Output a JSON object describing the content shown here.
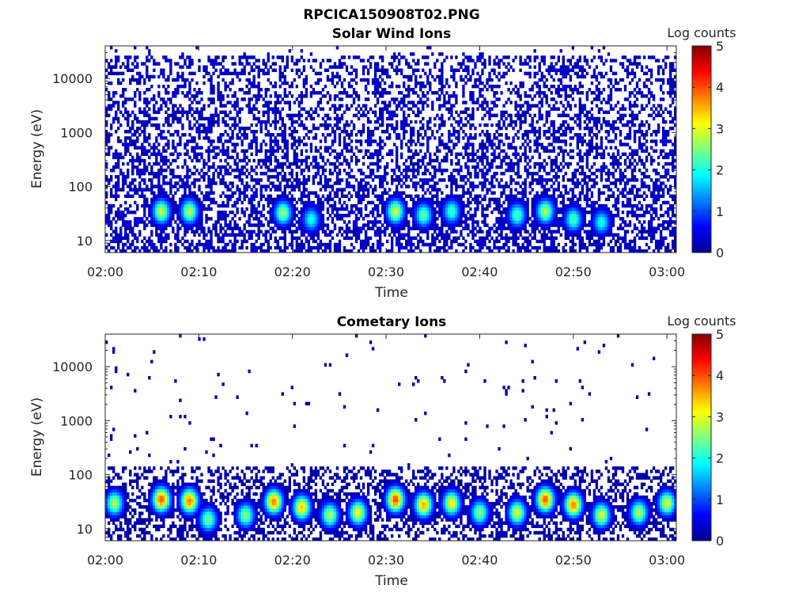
{
  "figure": {
    "title": "RPCICA150908T02.PNG"
  },
  "chart_data": [
    {
      "type": "heatmap",
      "title": "Solar Wind Ions",
      "xlabel": "Time",
      "ylabel": "Energy (eV)",
      "x_ticks": [
        "02:00",
        "02:10",
        "02:20",
        "02:30",
        "02:40",
        "02:50",
        "03:00"
      ],
      "x_range": [
        "02:00",
        "03:01"
      ],
      "y_ticks": [
        10,
        100,
        1000,
        10000
      ],
      "y_range": [
        6,
        40000
      ],
      "y_scale": "log",
      "colorbar": {
        "label": "Log counts",
        "ticks": [
          0,
          1,
          2,
          3,
          4,
          5
        ],
        "range": [
          0,
          5
        ],
        "colormap": "jet"
      },
      "background_noise": {
        "energy_range": [
          6,
          25000
        ],
        "log_counts": 0.3,
        "note_fill_fraction": 0.55
      },
      "features": [
        {
          "time": "02:06",
          "energy": 35,
          "log_counts": 2.9
        },
        {
          "time": "02:09",
          "energy": 35,
          "log_counts": 2.8
        },
        {
          "time": "02:19",
          "energy": 33,
          "log_counts": 2.7
        },
        {
          "time": "02:22",
          "energy": 25,
          "log_counts": 2.0
        },
        {
          "time": "02:31",
          "energy": 35,
          "log_counts": 3.0
        },
        {
          "time": "02:34",
          "energy": 30,
          "log_counts": 2.4
        },
        {
          "time": "02:37",
          "energy": 35,
          "log_counts": 2.2
        },
        {
          "time": "02:44",
          "energy": 30,
          "log_counts": 2.3
        },
        {
          "time": "02:47",
          "energy": 35,
          "log_counts": 2.8
        },
        {
          "time": "02:50",
          "energy": 25,
          "log_counts": 2.3
        },
        {
          "time": "02:53",
          "energy": 22,
          "log_counts": 2.0
        }
      ]
    },
    {
      "type": "heatmap",
      "title": "Cometary Ions",
      "xlabel": "Time",
      "ylabel": "Energy (eV)",
      "x_ticks": [
        "02:00",
        "02:10",
        "02:20",
        "02:30",
        "02:40",
        "02:50",
        "03:00"
      ],
      "x_range": [
        "02:00",
        "03:01"
      ],
      "y_ticks": [
        10,
        100,
        1000,
        10000
      ],
      "y_range": [
        6,
        40000
      ],
      "y_scale": "log",
      "colorbar": {
        "label": "Log counts",
        "ticks": [
          0,
          1,
          2,
          3,
          4,
          5
        ],
        "range": [
          0,
          5
        ],
        "colormap": "jet"
      },
      "background_noise": {
        "energy_range": [
          6,
          150
        ],
        "log_counts": 0.2,
        "note_fill_fraction": 0.45,
        "sparse_above": true
      },
      "features": [
        {
          "time": "02:01",
          "energy": 30,
          "log_counts": 2.8
        },
        {
          "time": "02:06",
          "energy": 35,
          "log_counts": 4.0
        },
        {
          "time": "02:09",
          "energy": 33,
          "log_counts": 3.8
        },
        {
          "time": "02:11",
          "energy": 15,
          "log_counts": 2.5
        },
        {
          "time": "02:15",
          "energy": 18,
          "log_counts": 2.6
        },
        {
          "time": "02:18",
          "energy": 32,
          "log_counts": 3.8
        },
        {
          "time": "02:21",
          "energy": 25,
          "log_counts": 3.4
        },
        {
          "time": "02:24",
          "energy": 18,
          "log_counts": 2.8
        },
        {
          "time": "02:27",
          "energy": 20,
          "log_counts": 3.2
        },
        {
          "time": "02:31",
          "energy": 35,
          "log_counts": 4.1
        },
        {
          "time": "02:34",
          "energy": 28,
          "log_counts": 3.6
        },
        {
          "time": "02:37",
          "energy": 30,
          "log_counts": 3.2
        },
        {
          "time": "02:40",
          "energy": 20,
          "log_counts": 2.6
        },
        {
          "time": "02:44",
          "energy": 20,
          "log_counts": 3.0
        },
        {
          "time": "02:47",
          "energy": 35,
          "log_counts": 4.0
        },
        {
          "time": "02:50",
          "energy": 28,
          "log_counts": 3.8
        },
        {
          "time": "02:53",
          "energy": 18,
          "log_counts": 3.0
        },
        {
          "time": "02:57",
          "energy": 20,
          "log_counts": 2.8
        },
        {
          "time": "03:00",
          "energy": 30,
          "log_counts": 3.0
        }
      ]
    }
  ]
}
